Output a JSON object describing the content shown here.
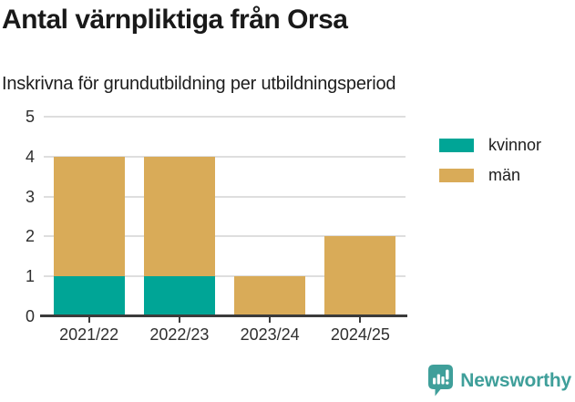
{
  "chart_data": {
    "type": "bar",
    "stacked": true,
    "title": "Antal värnpliktiga från Orsa",
    "subtitle": "Inskrivna för grundutbildning per utbildningsperiod",
    "categories": [
      "2021/22",
      "2022/23",
      "2023/24",
      "2024/25"
    ],
    "series": [
      {
        "name": "kvinnor",
        "color": "#00a596",
        "values": [
          1,
          1,
          0,
          0
        ]
      },
      {
        "name": "män",
        "color": "#d9ab58",
        "values": [
          3,
          3,
          1,
          2
        ]
      }
    ],
    "ylim": [
      0,
      5
    ],
    "yticks": [
      0,
      1,
      2,
      3,
      4,
      5
    ],
    "xlabel": "",
    "ylabel": "",
    "grid": true,
    "legend_position": "top-right"
  },
  "colors": {
    "axis": "#3b3b3b",
    "gridline": "#dedede",
    "text": "#1d1d1d"
  },
  "footer": {
    "brand": "Newsworthy",
    "brand_color": "#3f9f9a"
  }
}
